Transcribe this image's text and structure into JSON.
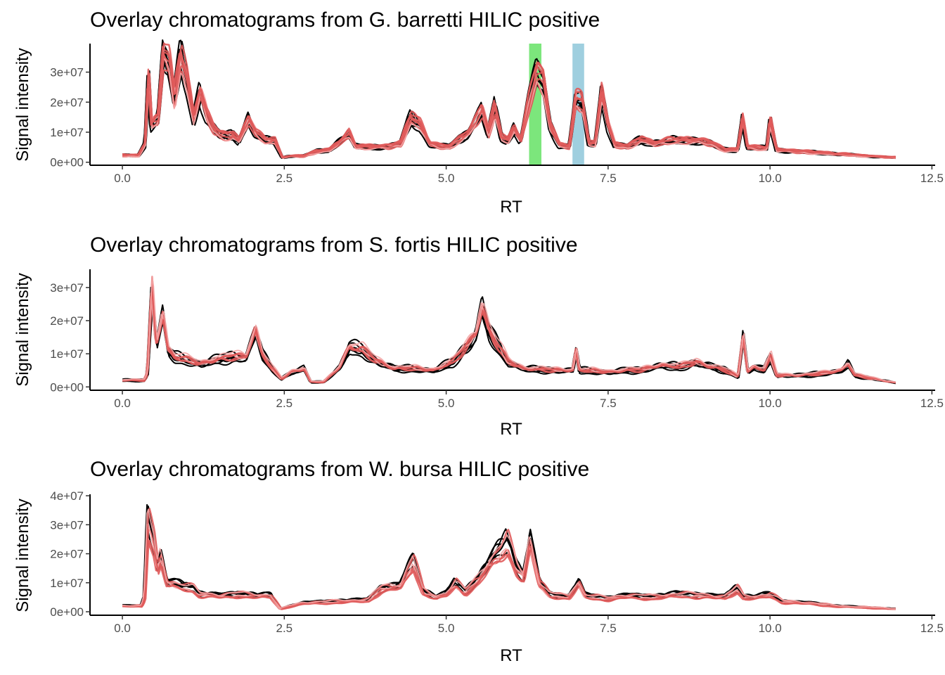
{
  "colors": {
    "sample_line": "#000000",
    "highlight_line": "#e05a5a",
    "highlight_line_light": "#f4a6a6",
    "band_green": "#7ce67c",
    "band_blue": "#9fcfdf"
  },
  "chart_data": [
    {
      "type": "line",
      "title": "Overlay chromatograms from G. barretti HILIC positive",
      "xlabel": "RT",
      "ylabel": "Signal intensity",
      "xlim": [
        -0.5,
        12.55
      ],
      "ylim": [
        -1000000.0,
        39500000.0
      ],
      "x_ticks": [
        0,
        2.5,
        5,
        7.5,
        10,
        12.5
      ],
      "x_tick_labels": [
        "0.0",
        "2.5",
        "5.0",
        "7.5",
        "10.0",
        "12.5"
      ],
      "y_ticks": [
        0,
        10000000.0,
        20000000.0,
        30000000.0
      ],
      "y_tick_labels": [
        "0e+00",
        "1e+07",
        "2e+07",
        "3e+07"
      ],
      "grid": false,
      "highlight_bands": [
        {
          "x_range": [
            6.28,
            6.47
          ],
          "color": "green"
        },
        {
          "x_range": [
            6.95,
            7.13
          ],
          "color": "blue"
        }
      ],
      "series_groups": [
        {
          "color": "black",
          "count": 8
        },
        {
          "color": "red",
          "count": 8
        }
      ],
      "profile": [
        [
          0.0,
          0.22
        ],
        [
          0.25,
          0.22
        ],
        [
          0.35,
          0.6
        ],
        [
          0.4,
          2.9
        ],
        [
          0.45,
          1.2
        ],
        [
          0.55,
          1.4
        ],
        [
          0.63,
          3.5
        ],
        [
          0.72,
          3.2
        ],
        [
          0.8,
          2.0
        ],
        [
          0.9,
          3.4
        ],
        [
          1.0,
          2.6
        ],
        [
          1.1,
          1.4
        ],
        [
          1.2,
          2.3
        ],
        [
          1.3,
          1.5
        ],
        [
          1.4,
          1.1
        ],
        [
          1.5,
          0.9
        ],
        [
          1.6,
          0.85
        ],
        [
          1.7,
          0.9
        ],
        [
          1.8,
          0.7
        ],
        [
          1.95,
          1.4
        ],
        [
          2.05,
          0.95
        ],
        [
          2.2,
          0.7
        ],
        [
          2.35,
          0.7
        ],
        [
          2.47,
          0.15
        ],
        [
          2.6,
          0.2
        ],
        [
          2.8,
          0.2
        ],
        [
          3.0,
          0.35
        ],
        [
          3.2,
          0.4
        ],
        [
          3.5,
          0.9
        ],
        [
          3.6,
          0.5
        ],
        [
          3.9,
          0.5
        ],
        [
          4.1,
          0.5
        ],
        [
          4.3,
          0.6
        ],
        [
          4.45,
          1.45
        ],
        [
          4.6,
          1.2
        ],
        [
          4.75,
          0.6
        ],
        [
          4.9,
          0.5
        ],
        [
          5.05,
          0.5
        ],
        [
          5.2,
          0.75
        ],
        [
          5.35,
          0.95
        ],
        [
          5.55,
          1.7
        ],
        [
          5.65,
          0.9
        ],
        [
          5.75,
          1.75
        ],
        [
          5.85,
          0.8
        ],
        [
          5.95,
          0.7
        ],
        [
          6.05,
          1.1
        ],
        [
          6.15,
          0.7
        ],
        [
          6.3,
          2.1
        ],
        [
          6.4,
          2.9
        ],
        [
          6.5,
          2.6
        ],
        [
          6.6,
          1.2
        ],
        [
          6.75,
          0.55
        ],
        [
          6.9,
          0.5
        ],
        [
          7.0,
          2.0
        ],
        [
          7.1,
          1.9
        ],
        [
          7.2,
          0.6
        ],
        [
          7.3,
          0.6
        ],
        [
          7.4,
          2.3
        ],
        [
          7.5,
          1.2
        ],
        [
          7.6,
          0.55
        ],
        [
          7.8,
          0.5
        ],
        [
          8.0,
          0.75
        ],
        [
          8.2,
          0.6
        ],
        [
          8.5,
          0.7
        ],
        [
          8.9,
          0.7
        ],
        [
          9.1,
          0.6
        ],
        [
          9.3,
          0.4
        ],
        [
          9.5,
          0.4
        ],
        [
          9.58,
          1.45
        ],
        [
          9.65,
          0.5
        ],
        [
          9.8,
          0.45
        ],
        [
          9.95,
          0.45
        ],
        [
          10.0,
          1.35
        ],
        [
          10.1,
          0.4
        ],
        [
          10.4,
          0.35
        ],
        [
          10.8,
          0.3
        ],
        [
          11.5,
          0.2
        ],
        [
          11.95,
          0.15
        ]
      ]
    },
    {
      "type": "line",
      "title": "Overlay chromatograms from S. fortis HILIC positive",
      "xlabel": "RT",
      "ylabel": "Signal intensity",
      "xlim": [
        -0.5,
        12.55
      ],
      "ylim": [
        -1000000.0,
        35500000.0
      ],
      "x_ticks": [
        0,
        2.5,
        5,
        7.5,
        10,
        12.5
      ],
      "x_tick_labels": [
        "0.0",
        "2.5",
        "5.0",
        "7.5",
        "10.0",
        "12.5"
      ],
      "y_ticks": [
        0,
        10000000.0,
        20000000.0,
        30000000.0
      ],
      "y_tick_labels": [
        "0e+00",
        "1e+07",
        "2e+07",
        "3e+07"
      ],
      "grid": false,
      "highlight_bands": [],
      "series_groups": [
        {
          "color": "black",
          "count": 6
        },
        {
          "color": "red",
          "count": 6
        }
      ],
      "profile": [
        [
          0.0,
          0.2
        ],
        [
          0.33,
          0.2
        ],
        [
          0.38,
          0.4
        ],
        [
          0.45,
          3.0
        ],
        [
          0.52,
          1.3
        ],
        [
          0.62,
          2.2
        ],
        [
          0.7,
          1.1
        ],
        [
          0.8,
          0.9
        ],
        [
          1.0,
          0.8
        ],
        [
          1.2,
          0.7
        ],
        [
          1.4,
          0.8
        ],
        [
          1.7,
          0.9
        ],
        [
          1.9,
          0.9
        ],
        [
          2.05,
          1.7
        ],
        [
          2.15,
          1.0
        ],
        [
          2.3,
          0.55
        ],
        [
          2.45,
          0.25
        ],
        [
          2.6,
          0.45
        ],
        [
          2.8,
          0.55
        ],
        [
          2.9,
          0.15
        ],
        [
          3.1,
          0.15
        ],
        [
          3.35,
          0.6
        ],
        [
          3.5,
          1.2
        ],
        [
          3.7,
          1.1
        ],
        [
          3.9,
          0.8
        ],
        [
          4.2,
          0.55
        ],
        [
          4.45,
          0.55
        ],
        [
          4.8,
          0.5
        ],
        [
          5.1,
          0.75
        ],
        [
          5.3,
          1.2
        ],
        [
          5.45,
          1.6
        ],
        [
          5.55,
          2.4
        ],
        [
          5.65,
          1.7
        ],
        [
          5.8,
          1.2
        ],
        [
          5.95,
          0.75
        ],
        [
          6.2,
          0.55
        ],
        [
          6.6,
          0.5
        ],
        [
          6.95,
          0.5
        ],
        [
          7.0,
          1.1
        ],
        [
          7.05,
          0.5
        ],
        [
          7.5,
          0.45
        ],
        [
          7.8,
          0.5
        ],
        [
          8.0,
          0.5
        ],
        [
          8.3,
          0.65
        ],
        [
          8.6,
          0.6
        ],
        [
          8.85,
          0.75
        ],
        [
          9.1,
          0.6
        ],
        [
          9.3,
          0.5
        ],
        [
          9.5,
          0.3
        ],
        [
          9.58,
          1.6
        ],
        [
          9.65,
          0.45
        ],
        [
          9.75,
          0.6
        ],
        [
          9.9,
          0.5
        ],
        [
          10.0,
          0.9
        ],
        [
          10.1,
          0.35
        ],
        [
          10.5,
          0.35
        ],
        [
          10.8,
          0.4
        ],
        [
          11.1,
          0.5
        ],
        [
          11.2,
          0.7
        ],
        [
          11.3,
          0.35
        ],
        [
          11.95,
          0.12
        ]
      ]
    },
    {
      "type": "line",
      "title": "Overlay chromatograms from W. bursa HILIC positive",
      "xlabel": "RT",
      "ylabel": "Signal intensity",
      "xlim": [
        -0.5,
        12.55
      ],
      "ylim": [
        -1200000.0,
        40500000.0
      ],
      "x_ticks": [
        0,
        2.5,
        5,
        7.5,
        10,
        12.5
      ],
      "x_tick_labels": [
        "0.0",
        "2.5",
        "5.0",
        "7.5",
        "10.0",
        "12.5"
      ],
      "y_ticks": [
        0,
        10000000.0,
        20000000.0,
        30000000.0,
        40000000.0
      ],
      "y_tick_labels": [
        "0e+00",
        "1e+07",
        "2e+07",
        "3e+07",
        "4e+07"
      ],
      "grid": false,
      "highlight_bands": [],
      "series_groups": [
        {
          "color": "black",
          "count": 6
        },
        {
          "color": "red",
          "count": 6
        }
      ],
      "profile": [
        [
          0.0,
          0.2
        ],
        [
          0.3,
          0.2
        ],
        [
          0.35,
          0.5
        ],
        [
          0.4,
          3.3
        ],
        [
          0.5,
          2.3
        ],
        [
          0.55,
          1.5
        ],
        [
          0.6,
          1.9
        ],
        [
          0.7,
          1.0
        ],
        [
          0.9,
          0.9
        ],
        [
          1.1,
          0.8
        ],
        [
          1.2,
          0.6
        ],
        [
          1.5,
          0.55
        ],
        [
          1.8,
          0.6
        ],
        [
          2.1,
          0.55
        ],
        [
          2.3,
          0.55
        ],
        [
          2.45,
          0.1
        ],
        [
          2.6,
          0.2
        ],
        [
          2.8,
          0.3
        ],
        [
          3.3,
          0.35
        ],
        [
          3.8,
          0.4
        ],
        [
          4.0,
          0.8
        ],
        [
          4.3,
          0.9
        ],
        [
          4.5,
          1.8
        ],
        [
          4.65,
          0.7
        ],
        [
          4.85,
          0.5
        ],
        [
          5.0,
          0.6
        ],
        [
          5.15,
          1.0
        ],
        [
          5.3,
          0.7
        ],
        [
          5.5,
          1.1
        ],
        [
          5.65,
          1.6
        ],
        [
          5.8,
          2.0
        ],
        [
          5.95,
          2.4
        ],
        [
          6.1,
          1.5
        ],
        [
          6.2,
          1.2
        ],
        [
          6.3,
          2.4
        ],
        [
          6.45,
          1.0
        ],
        [
          6.6,
          0.6
        ],
        [
          6.9,
          0.5
        ],
        [
          7.05,
          1.0
        ],
        [
          7.15,
          0.55
        ],
        [
          7.5,
          0.45
        ],
        [
          7.8,
          0.55
        ],
        [
          8.2,
          0.5
        ],
        [
          8.6,
          0.6
        ],
        [
          9.0,
          0.55
        ],
        [
          9.3,
          0.5
        ],
        [
          9.5,
          0.8
        ],
        [
          9.6,
          0.5
        ],
        [
          9.8,
          0.5
        ],
        [
          10.0,
          0.6
        ],
        [
          10.2,
          0.35
        ],
        [
          10.6,
          0.3
        ],
        [
          11.0,
          0.2
        ],
        [
          11.95,
          0.1
        ]
      ]
    }
  ]
}
